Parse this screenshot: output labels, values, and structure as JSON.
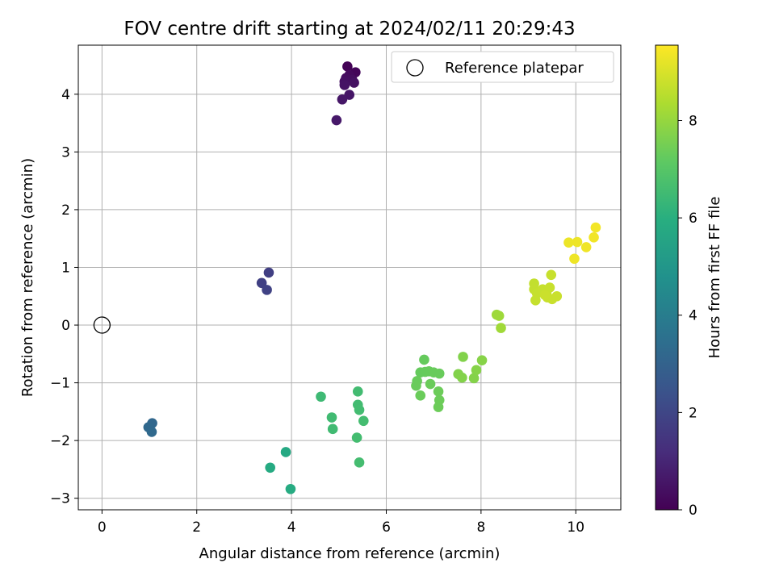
{
  "chart_data": {
    "type": "scatter",
    "title": "FOV centre drift starting at 2024/02/11 20:29:43",
    "xlabel": "Angular distance from reference (arcmin)",
    "ylabel": "Rotation from reference (arcmin)",
    "xlim": [
      -0.5,
      10.95
    ],
    "ylim": [
      -3.2,
      4.85
    ],
    "xticks": [
      0,
      2,
      4,
      6,
      8,
      10
    ],
    "yticks": [
      -3,
      -2,
      -1,
      0,
      1,
      2,
      3,
      4
    ],
    "grid": true,
    "legend": {
      "placement": "top-right",
      "entries": [
        "Reference platepar"
      ]
    },
    "reference": {
      "label": "Reference platepar",
      "x": 0,
      "y": 0,
      "marker": "open-circle"
    },
    "colorbar": {
      "label": "Hours from first FF file",
      "colormap": "viridis",
      "range": [
        0,
        9.55
      ],
      "ticks": [
        0,
        2,
        4,
        6,
        8
      ]
    },
    "points": [
      {
        "x": 5.18,
        "y": 4.48,
        "h": 0.05
      },
      {
        "x": 5.35,
        "y": 4.38,
        "h": 0.15
      },
      {
        "x": 5.22,
        "y": 4.33,
        "h": 0.25
      },
      {
        "x": 5.15,
        "y": 4.28,
        "h": 0.3
      },
      {
        "x": 5.28,
        "y": 4.25,
        "h": 0.35
      },
      {
        "x": 5.12,
        "y": 4.22,
        "h": 0.4
      },
      {
        "x": 5.32,
        "y": 4.2,
        "h": 0.45
      },
      {
        "x": 5.12,
        "y": 4.16,
        "h": 0.5
      },
      {
        "x": 5.22,
        "y": 3.99,
        "h": 0.55
      },
      {
        "x": 5.07,
        "y": 3.91,
        "h": 0.6
      },
      {
        "x": 4.95,
        "y": 3.55,
        "h": 0.65
      },
      {
        "x": 3.52,
        "y": 0.91,
        "h": 1.8
      },
      {
        "x": 3.37,
        "y": 0.73,
        "h": 1.85
      },
      {
        "x": 3.48,
        "y": 0.61,
        "h": 1.9
      },
      {
        "x": 1.06,
        "y": -1.7,
        "h": 3.2
      },
      {
        "x": 0.98,
        "y": -1.77,
        "h": 3.25
      },
      {
        "x": 1.05,
        "y": -1.85,
        "h": 3.3
      },
      {
        "x": 3.88,
        "y": -2.2,
        "h": 5.8
      },
      {
        "x": 3.55,
        "y": -2.47,
        "h": 5.85
      },
      {
        "x": 3.98,
        "y": -2.84,
        "h": 5.9
      },
      {
        "x": 4.62,
        "y": -1.24,
        "h": 6.5
      },
      {
        "x": 4.85,
        "y": -1.6,
        "h": 6.55
      },
      {
        "x": 4.87,
        "y": -1.8,
        "h": 6.55
      },
      {
        "x": 5.4,
        "y": -1.15,
        "h": 6.6
      },
      {
        "x": 5.4,
        "y": -1.38,
        "h": 6.6
      },
      {
        "x": 5.43,
        "y": -1.47,
        "h": 6.62
      },
      {
        "x": 5.52,
        "y": -1.66,
        "h": 6.63
      },
      {
        "x": 5.38,
        "y": -1.95,
        "h": 6.63
      },
      {
        "x": 5.43,
        "y": -2.38,
        "h": 6.65
      },
      {
        "x": 6.8,
        "y": -0.6,
        "h": 7.3
      },
      {
        "x": 6.72,
        "y": -0.82,
        "h": 7.3
      },
      {
        "x": 6.82,
        "y": -0.81,
        "h": 7.32
      },
      {
        "x": 6.9,
        "y": -0.8,
        "h": 7.33
      },
      {
        "x": 7.0,
        "y": -0.82,
        "h": 7.35
      },
      {
        "x": 7.12,
        "y": -0.84,
        "h": 7.35
      },
      {
        "x": 6.65,
        "y": -0.97,
        "h": 7.35
      },
      {
        "x": 6.63,
        "y": -1.05,
        "h": 7.36
      },
      {
        "x": 6.93,
        "y": -1.02,
        "h": 7.37
      },
      {
        "x": 6.72,
        "y": -1.22,
        "h": 7.38
      },
      {
        "x": 7.1,
        "y": -1.15,
        "h": 7.4
      },
      {
        "x": 7.12,
        "y": -1.3,
        "h": 7.4
      },
      {
        "x": 7.1,
        "y": -1.42,
        "h": 7.41
      },
      {
        "x": 7.62,
        "y": -0.55,
        "h": 7.75
      },
      {
        "x": 7.52,
        "y": -0.85,
        "h": 7.75
      },
      {
        "x": 7.6,
        "y": -0.91,
        "h": 7.76
      },
      {
        "x": 7.85,
        "y": -0.92,
        "h": 7.78
      },
      {
        "x": 7.9,
        "y": -0.78,
        "h": 7.8
      },
      {
        "x": 8.02,
        "y": -0.61,
        "h": 7.82
      },
      {
        "x": 8.33,
        "y": 0.18,
        "h": 8.15
      },
      {
        "x": 8.38,
        "y": 0.16,
        "h": 8.17
      },
      {
        "x": 8.42,
        "y": -0.05,
        "h": 8.2
      },
      {
        "x": 9.12,
        "y": 0.72,
        "h": 8.7
      },
      {
        "x": 9.12,
        "y": 0.62,
        "h": 8.72
      },
      {
        "x": 9.18,
        "y": 0.55,
        "h": 8.74
      },
      {
        "x": 9.15,
        "y": 0.43,
        "h": 8.75
      },
      {
        "x": 9.3,
        "y": 0.62,
        "h": 8.76
      },
      {
        "x": 9.38,
        "y": 0.55,
        "h": 8.77
      },
      {
        "x": 9.45,
        "y": 0.65,
        "h": 8.78
      },
      {
        "x": 9.48,
        "y": 0.87,
        "h": 8.78
      },
      {
        "x": 9.4,
        "y": 0.48,
        "h": 8.79
      },
      {
        "x": 9.5,
        "y": 0.45,
        "h": 8.8
      },
      {
        "x": 9.6,
        "y": 0.5,
        "h": 8.8
      },
      {
        "x": 9.35,
        "y": 0.52,
        "h": 8.81
      },
      {
        "x": 9.85,
        "y": 1.43,
        "h": 9.3
      },
      {
        "x": 10.03,
        "y": 1.44,
        "h": 9.32
      },
      {
        "x": 9.97,
        "y": 1.15,
        "h": 9.34
      },
      {
        "x": 10.22,
        "y": 1.35,
        "h": 9.36
      },
      {
        "x": 10.38,
        "y": 1.52,
        "h": 9.38
      },
      {
        "x": 10.42,
        "y": 1.69,
        "h": 9.4
      }
    ]
  }
}
